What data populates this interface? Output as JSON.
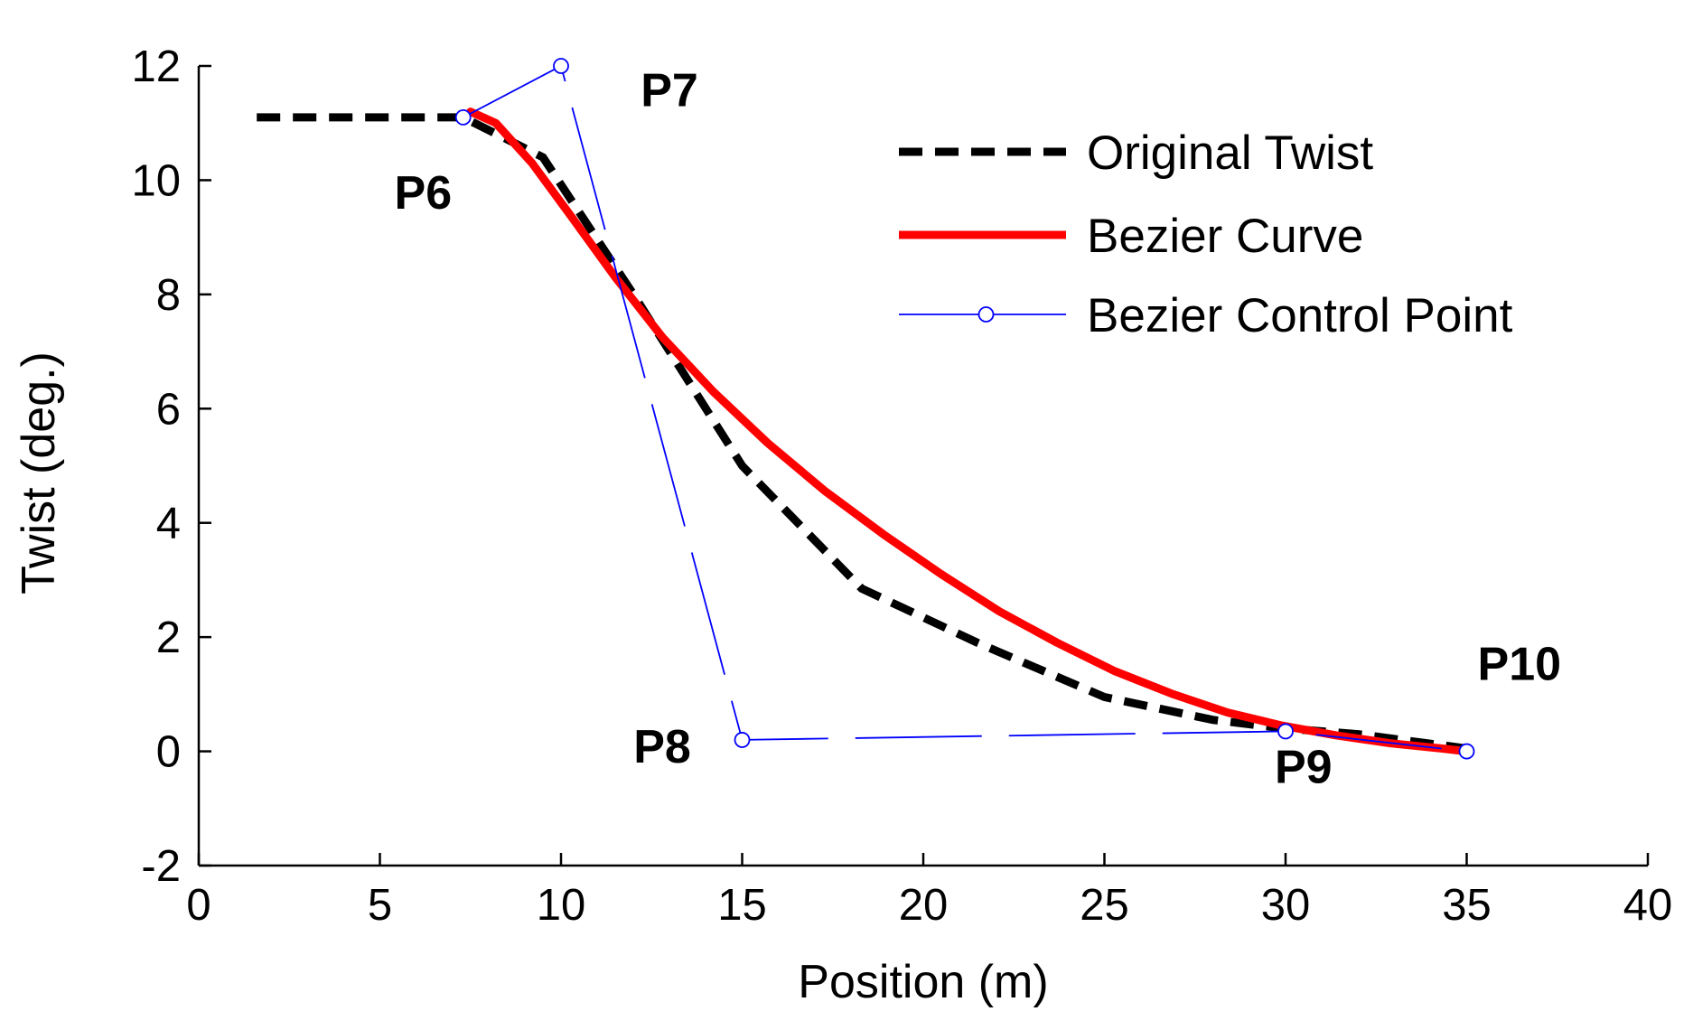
{
  "chart_data": {
    "type": "line",
    "title": "",
    "xlabel": "Position (m)",
    "ylabel": "Twist (deg.)",
    "xlim": [
      0,
      40
    ],
    "ylim": [
      -2,
      12
    ],
    "xticks": [
      0,
      5,
      10,
      15,
      20,
      25,
      30,
      35,
      40
    ],
    "yticks": [
      -2,
      0,
      2,
      4,
      6,
      8,
      10,
      12
    ],
    "grid": false,
    "legend_position": "top-right",
    "series": [
      {
        "name": "Original Twist",
        "style": "dashed",
        "color": "#000000",
        "x": [
          1.6,
          7.3,
          9.5,
          12.0,
          15.0,
          18.3,
          21.5,
          25.0,
          28.0,
          30.0,
          32.0,
          35.0
        ],
        "y": [
          11.1,
          11.1,
          10.4,
          8.0,
          5.0,
          2.85,
          1.9,
          0.95,
          0.55,
          0.4,
          0.3,
          0.05
        ]
      },
      {
        "name": "Bezier Curve",
        "style": "solid",
        "color": "#ff0000",
        "x": [
          7.5,
          8.2,
          9.2,
          10.3,
          11.5,
          12.8,
          14.2,
          15.7,
          17.3,
          18.9,
          20.5,
          22.1,
          23.7,
          25.3,
          26.9,
          28.4,
          29.9,
          31.4,
          32.9,
          34.3,
          35.0
        ],
        "y": [
          11.2,
          11.0,
          10.3,
          9.35,
          8.3,
          7.25,
          6.3,
          5.4,
          4.55,
          3.8,
          3.1,
          2.45,
          1.9,
          1.4,
          1.0,
          0.68,
          0.45,
          0.28,
          0.14,
          0.05,
          0.0
        ]
      },
      {
        "name": "Bezier Control Point",
        "style": "dash-long",
        "color": "#0000ff",
        "marker": "circle",
        "x": [
          7.3,
          10.0,
          15.0,
          30.0,
          35.0
        ],
        "y": [
          11.1,
          12.0,
          0.2,
          0.35,
          0.0
        ]
      }
    ],
    "annotations": [
      {
        "text": "P6",
        "x": 5.4,
        "y": 9.5
      },
      {
        "text": "P7",
        "x": 12.2,
        "y": 11.3
      },
      {
        "text": "P8",
        "x": 12.0,
        "y": -0.2
      },
      {
        "text": "P9",
        "x": 29.7,
        "y": -0.55
      },
      {
        "text": "P10",
        "x": 35.3,
        "y": 1.25
      }
    ]
  }
}
